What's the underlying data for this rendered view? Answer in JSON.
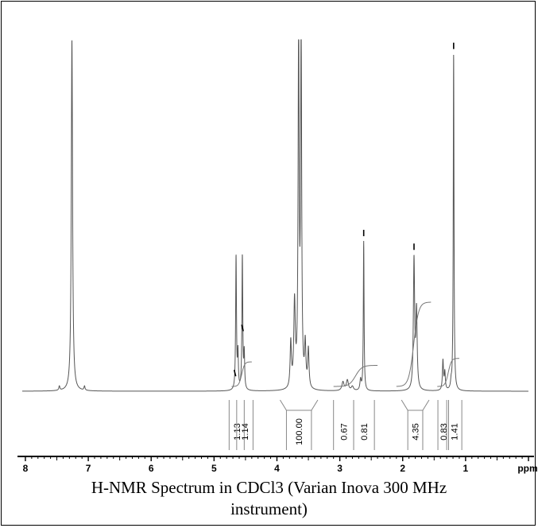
{
  "caption": {
    "line1": "H-NMR Spectrum in CDCl3 (Varian Inova 300 MHz",
    "line2": "instrument)"
  },
  "chart_data": {
    "type": "line",
    "title": "H-NMR Spectrum in CDCl3 (Varian Inova 300 MHz instrument)",
    "xlabel": "ppm",
    "ylabel": "",
    "xlim": [
      8.05,
      0.0
    ],
    "ylim": [
      0,
      1
    ],
    "x_reversed": true,
    "x_ticks": [
      8,
      7,
      6,
      5,
      4,
      3,
      2,
      1
    ],
    "x_tick_labels": [
      "8",
      "7",
      "6",
      "5",
      "4",
      "3",
      "2",
      "1"
    ],
    "peaks": [
      {
        "ppm": 7.26,
        "height": 1.0,
        "width": 0.012
      },
      {
        "ppm": 7.46,
        "height": 0.012,
        "width": 0.01
      },
      {
        "ppm": 7.06,
        "height": 0.012,
        "width": 0.01
      },
      {
        "ppm": 4.65,
        "height": 0.38,
        "width": 0.008
      },
      {
        "ppm": 4.62,
        "height": 0.1,
        "width": 0.008
      },
      {
        "ppm": 4.55,
        "height": 0.38,
        "width": 0.008
      },
      {
        "ppm": 4.52,
        "height": 0.1,
        "width": 0.008
      },
      {
        "ppm": 3.78,
        "height": 0.13,
        "width": 0.012
      },
      {
        "ppm": 3.72,
        "height": 0.24,
        "width": 0.014
      },
      {
        "ppm": 3.655,
        "height": 1.0,
        "width": 0.01
      },
      {
        "ppm": 3.615,
        "height": 1.0,
        "width": 0.01
      },
      {
        "ppm": 3.55,
        "height": 0.12,
        "width": 0.012
      },
      {
        "ppm": 3.5,
        "height": 0.11,
        "width": 0.012
      },
      {
        "ppm": 2.95,
        "height": 0.025,
        "width": 0.02
      },
      {
        "ppm": 2.88,
        "height": 0.03,
        "width": 0.02
      },
      {
        "ppm": 2.8,
        "height": 0.012,
        "width": 0.02
      },
      {
        "ppm": 2.62,
        "height": 0.425,
        "width": 0.007
      },
      {
        "ppm": 2.67,
        "height": 0.03,
        "width": 0.012
      },
      {
        "ppm": 1.82,
        "height": 0.37,
        "width": 0.012
      },
      {
        "ppm": 1.78,
        "height": 0.22,
        "width": 0.012
      },
      {
        "ppm": 1.36,
        "height": 0.085,
        "width": 0.01
      },
      {
        "ppm": 1.33,
        "height": 0.05,
        "width": 0.01
      },
      {
        "ppm": 1.23,
        "height": 0.018,
        "width": 0.01
      },
      {
        "ppm": 1.19,
        "height": 0.96,
        "width": 0.007
      }
    ],
    "integrals": [
      {
        "from": 4.76,
        "to": 4.52,
        "value": "1.13"
      },
      {
        "from": 4.64,
        "to": 4.38,
        "value": "1.14"
      },
      {
        "from": 3.95,
        "to": 3.35,
        "value": "100.00"
      },
      {
        "from": 3.1,
        "to": 2.78,
        "value": "0.67"
      },
      {
        "from": 2.78,
        "to": 2.45,
        "value": "0.81"
      },
      {
        "from": 2.02,
        "to": 1.58,
        "value": "4.35"
      },
      {
        "from": 1.44,
        "to": 1.27,
        "value": "0.83"
      },
      {
        "from": 1.3,
        "to": 1.06,
        "value": "1.41"
      }
    ],
    "integral_curves": [
      {
        "from": 4.72,
        "to": 4.4,
        "start": 0.0,
        "end": 0.07
      },
      {
        "from": 3.1,
        "to": 2.4,
        "start": 0.0,
        "end": 0.06
      },
      {
        "from": 2.1,
        "to": 1.55,
        "start": 0.0,
        "end": 0.24
      },
      {
        "from": 1.45,
        "to": 1.1,
        "start": 0.0,
        "end": 0.08
      }
    ],
    "peak_pick_markers": [
      4.68,
      4.56,
      2.62,
      1.82,
      1.19
    ],
    "grid": false,
    "legend": "none"
  }
}
